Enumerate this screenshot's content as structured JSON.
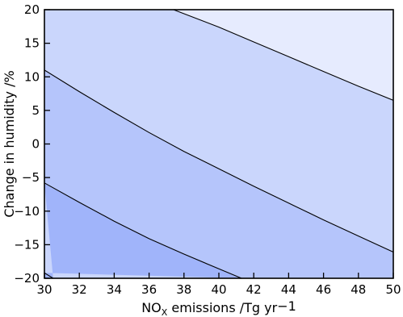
{
  "chart_data": {
    "type": "contour",
    "title": "",
    "xlabel": "NOx emissions /Tg yr−1",
    "xlabel_parts": {
      "pre": "NO",
      "sub": "X",
      "post": " emissions /Tg yr",
      "post2": "−1"
    },
    "ylabel": "Change in humidity /%",
    "xlim": [
      30,
      50
    ],
    "ylim": [
      -20,
      20
    ],
    "x_ticks": [
      30,
      32,
      34,
      36,
      38,
      40,
      42,
      44,
      46,
      48,
      50
    ],
    "y_ticks": [
      -20,
      -15,
      -10,
      -5,
      0,
      5,
      10,
      15,
      20
    ],
    "contour_lines": [
      {
        "name": "contour-1",
        "points": [
          [
            30,
            -19.2
          ],
          [
            30.5,
            -20
          ]
        ]
      },
      {
        "name": "contour-2",
        "points": [
          [
            30,
            -5.8
          ],
          [
            32,
            -8.7
          ],
          [
            34,
            -11.5
          ],
          [
            36,
            -14.1
          ],
          [
            38,
            -16.4
          ],
          [
            40,
            -18.6
          ],
          [
            41.3,
            -20
          ]
        ]
      },
      {
        "name": "contour-3",
        "points": [
          [
            30,
            11.0
          ],
          [
            32,
            7.8
          ],
          [
            34,
            4.7
          ],
          [
            36,
            1.7
          ],
          [
            38,
            -1.1
          ],
          [
            40,
            -3.7
          ],
          [
            42,
            -6.3
          ],
          [
            44,
            -8.8
          ],
          [
            46,
            -11.3
          ],
          [
            48,
            -13.7
          ],
          [
            50,
            -16.1
          ]
        ]
      },
      {
        "name": "contour-4",
        "points": [
          [
            37.4,
            20
          ],
          [
            40,
            17.4
          ],
          [
            42,
            15.2
          ],
          [
            44,
            13.0
          ],
          [
            46,
            10.8
          ],
          [
            48,
            8.6
          ],
          [
            50,
            6.5
          ]
        ]
      }
    ],
    "fill_colors": [
      "#a0b4fa",
      "#b5c5fb",
      "#cad6fc",
      "#e6ebfe"
    ],
    "line_color": "#000000"
  }
}
